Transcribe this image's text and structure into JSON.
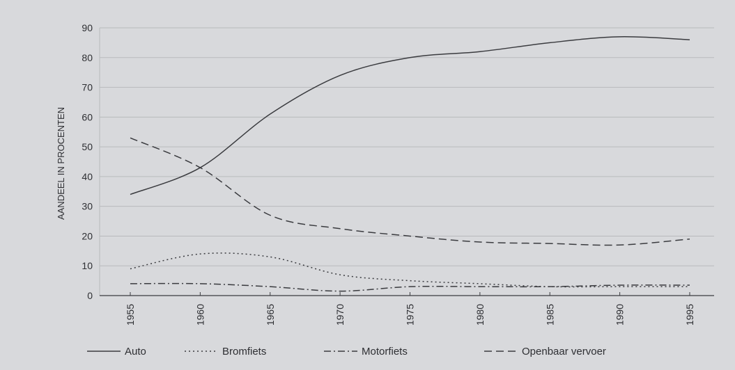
{
  "chart_data": {
    "type": "line",
    "title": "",
    "xlabel": "",
    "ylabel": "AANDEEL IN PROCENTEN",
    "ylim": [
      0,
      90
    ],
    "yticks": [
      0,
      10,
      20,
      30,
      40,
      50,
      60,
      70,
      80,
      90
    ],
    "xticks": [
      "1955",
      "1960",
      "1965",
      "1970",
      "1975",
      "1980",
      "1985",
      "1990",
      "1995"
    ],
    "grid": true,
    "legend_position": "bottom",
    "series": [
      {
        "name": "Auto",
        "style": "solid",
        "x": [
          1955,
          1960,
          1965,
          1970,
          1975,
          1980,
          1985,
          1990,
          1995
        ],
        "values": [
          34,
          43,
          61,
          74,
          80,
          82,
          85,
          87,
          86
        ]
      },
      {
        "name": "Bromfiets",
        "style": "dotted",
        "x": [
          1955,
          1960,
          1965,
          1970,
          1975,
          1980,
          1985,
          1990,
          1995
        ],
        "values": [
          9,
          14,
          13,
          7,
          5,
          4,
          3,
          3,
          3
        ]
      },
      {
        "name": "Motorfiets",
        "style": "dashdot",
        "x": [
          1955,
          1960,
          1965,
          1970,
          1975,
          1980,
          1985,
          1990,
          1995
        ],
        "values": [
          4,
          4,
          3,
          1.5,
          3,
          3,
          3,
          3.5,
          3.5
        ]
      },
      {
        "name": "Openbaar vervoer",
        "style": "dashed",
        "x": [
          1955,
          1960,
          1965,
          1970,
          1975,
          1980,
          1985,
          1990,
          1995
        ],
        "values": [
          53,
          43,
          27,
          22.5,
          20,
          18,
          17.5,
          17,
          19
        ]
      }
    ],
    "colors": {
      "line": "#3a3b3f",
      "grid": "#b9babd",
      "background": "#d8d9dc"
    }
  }
}
